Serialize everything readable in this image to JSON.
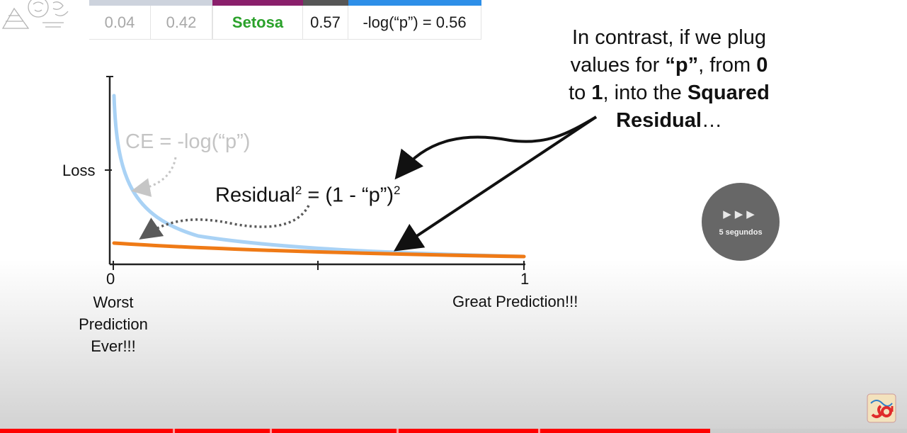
{
  "table": {
    "v1": "0.04",
    "v2": "0.42",
    "species": "Setosa",
    "p": "0.57",
    "formula": "-log(“p”) = 0.56",
    "header_colors": [
      "#cdd3dd",
      "#8a1f6b",
      "#565656",
      "#2d8fe8"
    ]
  },
  "graph": {
    "y_label": "Loss",
    "x_tick_0": "0",
    "x_tick_1": "1",
    "x_label_left": [
      "Worst",
      "Prediction",
      "Ever!!!"
    ],
    "x_label_right": "Great Prediction!!!",
    "ce_label": "CE = -log(“p”)",
    "residual_label": "Residual",
    "residual_rhs": " = (1 - “p”)",
    "superscript": "2",
    "ce_color": "#a9d2f5",
    "residual_color": "#ef7a16"
  },
  "annotation": {
    "line1": "In contrast, if we plug",
    "line2_a": "values for ",
    "line2_b": "“p”",
    "line2_c": ", from ",
    "line2_d": "0",
    "line3_a": "to ",
    "line3_b": "1",
    "line3_c": ", into the ",
    "line3_d": "Squared",
    "line4_a": "Residual",
    "line4_b": "…"
  },
  "skip_button": {
    "arrows": "▶▶▶",
    "label": "5 segundos"
  },
  "progress": {
    "accent": "#ff0000"
  },
  "icons": [
    "brand-logo-icon",
    "channel-watermark-icon"
  ]
}
